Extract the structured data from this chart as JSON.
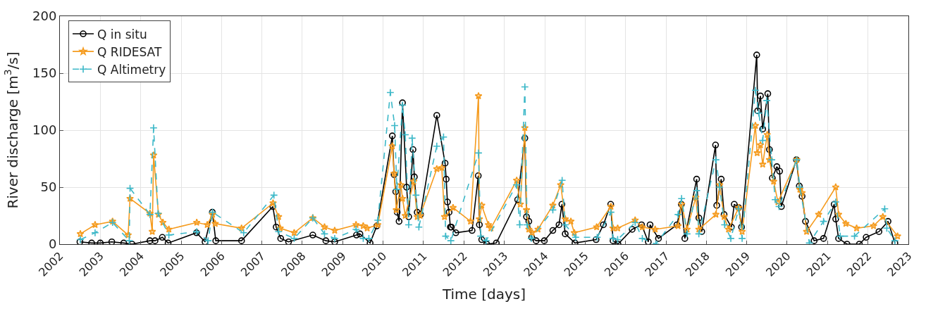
{
  "chart_data": {
    "type": "line",
    "xlabel": "Time [days]",
    "ylabel": "River discharge [m$^{3}$/s]",
    "xlim": [
      "2002",
      "2023"
    ],
    "xticks": [
      "2002",
      "2003",
      "2004",
      "2005",
      "2006",
      "2007",
      "2008",
      "2009",
      "2010",
      "2011",
      "2012",
      "2013",
      "2014",
      "2015",
      "2016",
      "2017",
      "2018",
      "2019",
      "2020",
      "2021",
      "2022",
      "2023"
    ],
    "ylim": [
      0,
      200
    ],
    "yticks": [
      0,
      50,
      100,
      150,
      200
    ],
    "grid": true,
    "legend": "top left",
    "series": [
      {
        "name": "Q in situ",
        "color": "#000000",
        "marker": "circle",
        "line_style": "solid",
        "x": [
          "2002-07-01",
          "2002-10-15",
          "2003-01-01",
          "2003-04-15",
          "2003-08-01",
          "2003-10-15",
          "2004-03-25",
          "2004-05-10",
          "2004-07-15",
          "2004-09-05",
          "2005-05-20",
          "2005-08-05",
          "2005-10-10",
          "2005-11-10",
          "2006-07-01",
          "2007-04-10",
          "2007-05-10",
          "2007-06-20",
          "2007-08-30",
          "2008-04-05",
          "2008-08-01",
          "2008-10-20",
          "2009-05-05",
          "2009-06-05",
          "2009-09-05",
          "2009-11-05",
          "2010-03-25",
          "2010-04-10",
          "2010-04-25",
          "2010-05-08",
          "2010-05-25",
          "2010-06-25",
          "2010-08-01",
          "2010-08-20",
          "2010-09-28",
          "2010-10-10",
          "2010-11-05",
          "2010-12-05",
          "2011-05-01",
          "2011-07-15",
          "2011-07-25",
          "2011-08-05",
          "2011-08-20",
          "2011-09-01",
          "2011-09-10",
          "2011-10-20",
          "2012-03-15",
          "2012-05-10",
          "2012-05-20",
          "2012-06-10",
          "2012-07-25",
          "2012-10-20",
          "2013-05-01",
          "2013-07-05",
          "2013-07-20",
          "2013-08-10",
          "2013-09-05",
          "2013-10-15",
          "2013-12-28",
          "2014-03-15",
          "2014-05-10",
          "2014-06-05",
          "2014-07-05",
          "2014-10-01",
          "2015-04-10",
          "2015-06-15",
          "2015-08-20",
          "2015-09-10",
          "2015-10-25",
          "2016-03-01",
          "2016-05-25",
          "2016-07-25",
          "2016-08-10",
          "2016-10-25",
          "2017-04-10",
          "2017-05-20",
          "2017-06-20",
          "2017-10-05",
          "2017-10-25",
          "2017-11-20",
          "2018-03-25",
          "2018-04-05",
          "2018-05-15",
          "2018-06-10",
          "2018-08-15",
          "2018-09-10",
          "2018-10-20",
          "2018-11-15",
          "2019-04-01",
          "2019-04-10",
          "2019-05-05",
          "2019-05-25",
          "2019-07-10",
          "2019-07-25",
          "2019-08-20",
          "2019-09-30",
          "2019-10-25",
          "2019-11-10",
          "2020-03-25",
          "2020-04-20",
          "2020-05-15",
          "2020-06-15",
          "2020-09-01",
          "2020-11-25",
          "2021-03-01",
          "2021-03-15",
          "2021-04-10",
          "2021-06-25",
          "2021-10-15",
          "2021-12-15",
          "2022-04-10",
          "2022-07-01",
          "2022-09-01"
        ],
        "values": [
          2,
          1,
          1,
          2,
          1,
          0,
          3,
          3,
          6,
          1,
          10,
          2,
          28,
          3,
          3,
          33,
          15,
          5,
          2,
          8,
          3,
          2,
          8,
          9,
          1,
          16,
          95,
          61,
          46,
          28,
          20,
          124,
          50,
          24,
          83,
          59,
          28,
          26,
          113,
          71,
          57,
          37,
          28,
          15,
          15,
          10,
          12,
          60,
          17,
          4,
          0,
          1,
          39,
          93,
          24,
          20,
          6,
          3,
          3,
          12,
          17,
          35,
          9,
          1,
          4,
          17,
          35,
          3,
          0,
          13,
          17,
          2,
          17,
          5,
          17,
          35,
          5,
          57,
          23,
          11,
          87,
          34,
          57,
          26,
          15,
          35,
          32,
          15,
          166,
          117,
          130,
          101,
          132,
          83,
          58,
          68,
          64,
          33,
          74,
          51,
          42,
          20,
          3,
          5,
          35,
          22,
          5,
          0,
          0,
          6,
          11,
          20,
          1
        ]
      },
      {
        "name": "Q RIDESAT",
        "color": "#f59b1e",
        "marker": "star",
        "line_style": "solid",
        "x": [
          "2002-07-05",
          "2002-11-15",
          "2003-04-22",
          "2003-09-10",
          "2003-09-27",
          "2004-03-25",
          "2004-04-15",
          "2004-04-27",
          "2004-06-10",
          "2004-07-20",
          "2004-09-12",
          "2005-05-22",
          "2005-08-25",
          "2005-10-12",
          "2005-11-05",
          "2006-07-01",
          "2007-04-12",
          "2007-06-01",
          "2007-06-15",
          "2007-10-20",
          "2008-04-05",
          "2008-07-20",
          "2008-10-20",
          "2009-05-01",
          "2009-07-05",
          "2009-08-10",
          "2009-11-14",
          "2010-03-25",
          "2010-04-10",
          "2010-04-30",
          "2010-06-10",
          "2010-06-25",
          "2010-07-20",
          "2010-10-05",
          "2010-11-05",
          "2010-12-01",
          "2011-05-01",
          "2011-06-15",
          "2011-07-10",
          "2011-09-25",
          "2012-03-01",
          "2012-05-12",
          "2012-05-20",
          "2012-06-10",
          "2012-08-10",
          "2012-09-01",
          "2013-04-22",
          "2013-05-25",
          "2013-07-05",
          "2013-07-20",
          "2013-08-10",
          "2013-09-10",
          "2013-11-01",
          "2014-03-15",
          "2014-05-25",
          "2014-07-05",
          "2014-08-25",
          "2014-09-25",
          "2015-04-15",
          "2015-08-22",
          "2015-09-10",
          "2015-10-22",
          "2016-03-28",
          "2016-06-01",
          "2016-09-25",
          "2017-04-20",
          "2017-05-22",
          "2017-07-10",
          "2017-09-27",
          "2017-10-25",
          "2018-03-28",
          "2018-05-01",
          "2018-06-10",
          "2018-07-20",
          "2018-10-20",
          "2018-11-20",
          "2019-03-20",
          "2019-04-05",
          "2019-05-05",
          "2019-05-25",
          "2019-07-05",
          "2019-07-25",
          "2019-09-01",
          "2019-10-10",
          "2020-03-28",
          "2020-04-25",
          "2020-05-15",
          "2020-06-25",
          "2020-10-12",
          "2021-03-15",
          "2021-04-10",
          "2021-06-15",
          "2021-09-20",
          "2022-02-20",
          "2022-05-15",
          "2022-09-25"
        ],
        "values": [
          9,
          17,
          20,
          8,
          40,
          27,
          11,
          78,
          26,
          19,
          13,
          19,
          17,
          26,
          18,
          14,
          36,
          24,
          14,
          10,
          23,
          15,
          12,
          17,
          16,
          14,
          17,
          86,
          62,
          30,
          52,
          40,
          25,
          55,
          24,
          25,
          66,
          67,
          24,
          32,
          20,
          130,
          22,
          34,
          17,
          14,
          56,
          35,
          102,
          30,
          13,
          10,
          13,
          34,
          52,
          22,
          20,
          10,
          15,
          33,
          14,
          14,
          21,
          15,
          13,
          16,
          35,
          13,
          41,
          13,
          26,
          52,
          24,
          13,
          32,
          11,
          104,
          80,
          87,
          70,
          96,
          74,
          55,
          37,
          74,
          48,
          45,
          11,
          26,
          50,
          26,
          18,
          14,
          16,
          24,
          7
        ]
      },
      {
        "name": "Q Altimetry",
        "color": "#3cb8c8",
        "marker": "cross",
        "line_style": "dashed",
        "x": [
          "2002-07-05",
          "2002-11-15",
          "2003-04-22",
          "2003-09-20",
          "2003-09-27",
          "2004-03-25",
          "2004-04-27",
          "2004-06-07",
          "2004-09-12",
          "2005-05-22",
          "2005-09-01",
          "2005-10-12",
          "2006-07-20",
          "2007-04-20",
          "2007-06-01",
          "2007-10-20",
          "2008-04-05",
          "2008-07-20",
          "2008-10-20",
          "2009-05-01",
          "2009-07-05",
          "2009-08-25",
          "2009-11-14",
          "2010-03-07",
          "2010-04-15",
          "2010-05-05",
          "2010-06-25",
          "2010-07-20",
          "2010-08-20",
          "2010-09-20",
          "2010-10-25",
          "2010-11-20",
          "2011-05-01",
          "2011-07-01",
          "2011-07-20",
          "2011-09-05",
          "2012-05-12",
          "2012-06-01",
          "2012-07-20",
          "2013-04-20",
          "2013-05-20",
          "2013-07-05",
          "2013-07-25",
          "2013-09-01",
          "2014-03-15",
          "2014-06-07",
          "2014-07-05",
          "2014-10-08",
          "2015-04-20",
          "2015-08-22",
          "2015-09-10",
          "2015-10-22",
          "2016-03-28",
          "2016-06-01",
          "2016-10-01",
          "2017-04-20",
          "2017-05-22",
          "2017-07-10",
          "2017-10-05",
          "2017-10-25",
          "2018-03-28",
          "2018-05-01",
          "2018-06-15",
          "2018-08-10",
          "2018-10-20",
          "2018-11-20",
          "2019-03-20",
          "2019-04-20",
          "2019-05-25",
          "2019-07-01",
          "2019-08-15",
          "2019-09-15",
          "2019-10-20",
          "2020-03-28",
          "2020-04-25",
          "2020-07-20",
          "2020-11-25",
          "2021-03-15",
          "2021-04-25",
          "2021-09-01",
          "2022-06-01",
          "2022-06-20",
          "2022-09-01"
        ],
        "values": [
          4,
          10,
          19,
          3,
          49,
          26,
          102,
          27,
          8,
          11,
          3,
          28,
          10,
          43,
          11,
          5,
          23,
          9,
          5,
          13,
          5,
          5,
          21,
          133,
          104,
          48,
          122,
          96,
          17,
          93,
          43,
          15,
          86,
          94,
          7,
          3,
          80,
          7,
          3,
          52,
          17,
          138,
          17,
          5,
          30,
          56,
          17,
          6,
          6,
          28,
          5,
          4,
          19,
          5,
          0,
          26,
          40,
          9,
          47,
          9,
          74,
          50,
          17,
          5,
          31,
          5,
          135,
          115,
          91,
          126,
          74,
          39,
          33,
          74,
          50,
          1,
          20,
          37,
          7,
          7,
          31,
          14,
          3
        ]
      }
    ]
  }
}
